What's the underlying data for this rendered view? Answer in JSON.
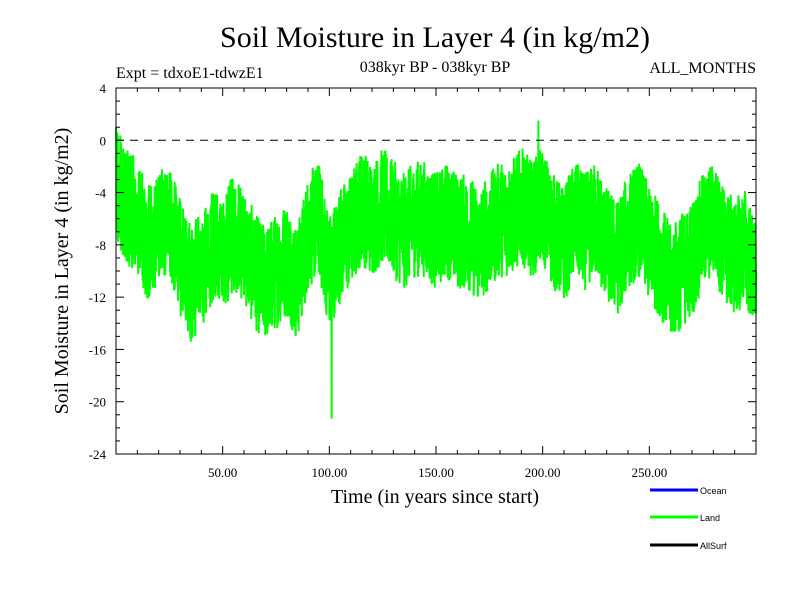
{
  "chart_data": {
    "type": "line",
    "title": "Soil Moisture in Layer 4 (in kg/m2)",
    "subtitle_left": "Expt = tdxoE1-tdwzE1",
    "subtitle_center": "038kyr BP - 038kyr BP",
    "subtitle_right": "ALL_MONTHS",
    "xlabel": "Time (in years since start)",
    "ylabel": "Soil Moisture in Layer 4 (in kg/m2)",
    "xlim": [
      0,
      300
    ],
    "ylim": [
      -24,
      4
    ],
    "x_ticks": [
      50,
      100,
      150,
      200,
      250
    ],
    "x_tick_labels": [
      "50.00",
      "100.00",
      "150.00",
      "200.00",
      "250.00"
    ],
    "y_ticks": [
      4,
      0,
      -4,
      -8,
      -12,
      -16,
      -20,
      -24
    ],
    "y_tick_labels": [
      "4",
      "0",
      "-4",
      "-8",
      "-12",
      "-16",
      "-20",
      "-24"
    ],
    "reference_line": 0,
    "legend": [
      {
        "name": "Ocean",
        "color": "#0000ff"
      },
      {
        "name": "Land",
        "color": "#00ff00"
      },
      {
        "name": "AllSurf",
        "color": "#000000"
      }
    ],
    "series": [
      {
        "name": "Land",
        "color": "#00ff00",
        "x": [
          0,
          5,
          10,
          15,
          20,
          25,
          30,
          35,
          40,
          45,
          50,
          55,
          60,
          65,
          70,
          75,
          80,
          85,
          90,
          95,
          100,
          105,
          110,
          115,
          120,
          125,
          130,
          135,
          140,
          145,
          150,
          155,
          160,
          165,
          170,
          175,
          180,
          185,
          190,
          195,
          200,
          205,
          210,
          215,
          220,
          225,
          230,
          235,
          240,
          245,
          250,
          255,
          260,
          265,
          270,
          275,
          280,
          285,
          290,
          295,
          300
        ],
        "values": [
          -3,
          -5,
          -6,
          -8,
          -7,
          -6,
          -9,
          -11,
          -10,
          -8,
          -9,
          -7,
          -8,
          -10,
          -11,
          -10,
          -9,
          -11,
          -7,
          -6,
          -10,
          -8,
          -7,
          -5,
          -6,
          -5,
          -6,
          -7,
          -6,
          -6,
          -7,
          -6,
          -7,
          -7,
          -8,
          -7,
          -6,
          -6,
          -5,
          -6,
          -5,
          -7,
          -8,
          -6,
          -7,
          -6,
          -8,
          -9,
          -7,
          -6,
          -8,
          -9,
          -11,
          -10,
          -9,
          -7,
          -6,
          -8,
          -9,
          -8,
          -11
        ],
        "noise_amplitude": 4.5,
        "observed_max": 1.5,
        "observed_min": -21.3,
        "samples_per_year": 12
      }
    ]
  }
}
